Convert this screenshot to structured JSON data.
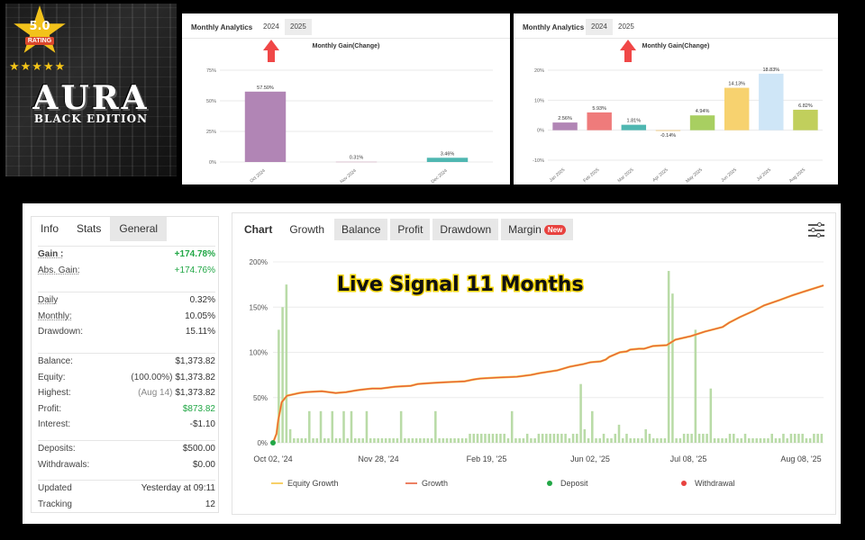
{
  "logo": {
    "rating_value": "5.0",
    "rating_word": "RATING",
    "stars": "★★★★★",
    "brand": "AURA",
    "edition": "BLACK EDITION",
    "colors": {
      "star": "#f2c21b",
      "rating_badge": "#d9462c"
    }
  },
  "monthly_2024": {
    "title": "Monthly Analytics",
    "tabs": [
      "2024",
      "2025"
    ],
    "active_tab": "2024",
    "arrow_icon": "red-up-arrow-icon"
  },
  "monthly_2025": {
    "title": "Monthly Analytics",
    "tabs": [
      "2024",
      "2025"
    ],
    "active_tab": "2024",
    "arrow_icon": "red-up-arrow-icon"
  },
  "stats": {
    "tabs": [
      "Info",
      "Stats",
      "General"
    ],
    "active_tab": "General",
    "gain_label": "Gain :",
    "gain": "+174.78%",
    "abs_gain_label": "Abs. Gain:",
    "abs_gain": "+174.76%",
    "daily_label": "Daily",
    "daily": "0.32%",
    "monthly_label": "Monthly:",
    "monthly": "10.05%",
    "drawdown_label": "Drawdown:",
    "drawdown": "15.11%",
    "balance_label": "Balance:",
    "balance": "$1,373.82",
    "equity_label": "Equity:",
    "equity_note": "(100.00%)",
    "equity": "$1,373.82",
    "highest_label": "Highest:",
    "highest_note": "(Aug 14)",
    "highest": "$1,373.82",
    "profit_label": "Profit:",
    "profit": "$873.82",
    "interest_label": "Interest:",
    "interest": "-$1.10",
    "deposits_label": "Deposits:",
    "deposits": "$500.00",
    "withdrawals_label": "Withdrawals:",
    "withdrawals": "$0.00",
    "updated_label": "Updated",
    "updated": "Yesterday at 09:11",
    "tracking_label": "Tracking",
    "tracking": "12"
  },
  "growth_panel": {
    "tabs": [
      "Chart",
      "Growth",
      "Balance",
      "Profit",
      "Drawdown",
      "Margin"
    ],
    "new_badge": "New",
    "filter_icon": "sliders-icon",
    "overlay_text": "Live Signal 11 Months"
  },
  "chart_data": [
    {
      "type": "bar",
      "title": "Monthly Gain(Change)",
      "categories": [
        "Oct 2024",
        "Nov 2024",
        "Dec 2024"
      ],
      "values": [
        57.5,
        0.31,
        3.46
      ],
      "labels": [
        "57.50%",
        "0.31%",
        "3.46%"
      ],
      "colors": [
        "#b185b5",
        "#d7b8c8",
        "#4fb7b1"
      ],
      "ylim": [
        0,
        75
      ],
      "yticks": [
        "0%",
        "25%",
        "50%",
        "75%"
      ]
    },
    {
      "type": "bar",
      "title": "Monthly Gain(Change)",
      "categories": [
        "Jan 2025",
        "Feb 2025",
        "Mar 2025",
        "Apr 2025",
        "May 2025",
        "Jun 2025",
        "Jul 2025",
        "Aug 2025"
      ],
      "values": [
        2.56,
        5.93,
        1.81,
        -0.14,
        4.94,
        14.13,
        18.83,
        6.82
      ],
      "labels": [
        "2.56%",
        "5.93%",
        "1.81%",
        "-0.14%",
        "4.94%",
        "14.13%",
        "18.83%",
        "6.82%"
      ],
      "colors": [
        "#b185b5",
        "#ef7b7b",
        "#4fb7b1",
        "#f2c774",
        "#a8cf61",
        "#f7d26f",
        "#cfe6f7",
        "#c1cf5c"
      ],
      "ylim": [
        -10,
        20
      ],
      "yticks": [
        "-10%",
        "0%",
        "10%",
        "20%"
      ]
    },
    {
      "type": "line",
      "title": "",
      "x_ticks": [
        "Oct 02, '24",
        "Nov 28, '24",
        "Feb 19, '25",
        "Jun 02, '25",
        "Jul 08, '25",
        "Aug 08, '25"
      ],
      "y_ticks": [
        "0%",
        "50%",
        "100%",
        "150%",
        "200%"
      ],
      "ylim": [
        0,
        200
      ],
      "legend": [
        "Equity Growth",
        "Growth",
        "Deposit",
        "Withdrawal"
      ],
      "legend_position": "bottom",
      "legend_colors": [
        "#f5c542",
        "#e8613c",
        "#22a746",
        "#e8423f"
      ],
      "series": [
        {
          "name": "Growth",
          "x": [
            0,
            2,
            3,
            5,
            8,
            15,
            19,
            28,
            36,
            42,
            48,
            52,
            57,
            62,
            70,
            79,
            83,
            90,
            99,
            110,
            115,
            119,
            128,
            140,
            148,
            153,
            163,
            170,
            178,
            182,
            188,
            191,
            193,
            199,
            203,
            205,
            210,
            213,
            218,
            226,
            231,
            240,
            248,
            258,
            262,
            268,
            276,
            282,
            291,
            298,
            306,
            316
          ],
          "values": [
            0,
            10,
            25,
            45,
            52,
            55,
            56,
            57,
            55,
            56,
            58,
            59,
            60,
            60,
            62,
            63,
            65,
            66,
            67,
            68,
            70,
            71,
            72,
            73,
            75,
            77,
            80,
            84,
            87,
            89,
            90,
            92,
            95,
            100,
            101,
            103,
            104,
            104,
            107,
            108,
            114,
            118,
            123,
            128,
            133,
            139,
            146,
            152,
            158,
            163,
            168,
            174
          ]
        }
      ],
      "bars": {
        "name": "Daily gain bars",
        "values": [
          0,
          125,
          150,
          175,
          15,
          5,
          5,
          5,
          5,
          35,
          5,
          5,
          35,
          5,
          5,
          35,
          5,
          5,
          35,
          5,
          35,
          5,
          5,
          5,
          35,
          5,
          5,
          5,
          5,
          5,
          5,
          5,
          5,
          35,
          5,
          5,
          5,
          5,
          5,
          5,
          5,
          5,
          35,
          5,
          5,
          5,
          5,
          5,
          5,
          5,
          5,
          10,
          10,
          10,
          10,
          10,
          10,
          10,
          10,
          10,
          10,
          5,
          35,
          5,
          5,
          5,
          10,
          5,
          5,
          10,
          10,
          10,
          10,
          10,
          10,
          10,
          10,
          5,
          10,
          10,
          65,
          15,
          5,
          35,
          5,
          5,
          10,
          5,
          5,
          10,
          20,
          5,
          10,
          5,
          5,
          5,
          5,
          15,
          10,
          5,
          5,
          5,
          5,
          190,
          165,
          5,
          5,
          10,
          10,
          10,
          125,
          10,
          10,
          10,
          60,
          5,
          5,
          5,
          5,
          10,
          10,
          5,
          5,
          10,
          5,
          5,
          5,
          5,
          5,
          5,
          10,
          5,
          5,
          10,
          5,
          10,
          10,
          10,
          10,
          5,
          5,
          10,
          10,
          10
        ]
      },
      "deposit_marker": {
        "x": 0,
        "y": 0
      }
    }
  ]
}
